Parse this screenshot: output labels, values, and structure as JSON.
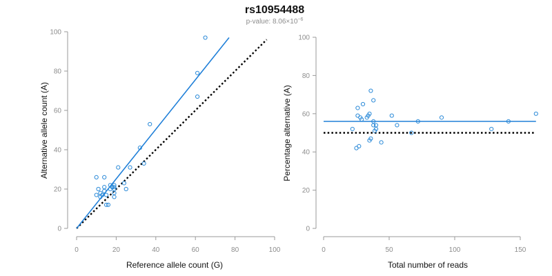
{
  "figure": {
    "title": "rs10954488",
    "subtitle_prefix": "p-value: 8.06×10",
    "subtitle_exponent": "−6",
    "colors": {
      "fit": "#1f7fd8",
      "points": "#2b8ad8",
      "reference": "#000000"
    }
  },
  "chart_data": [
    {
      "type": "scatter",
      "xlabel": "Reference allele count (G)",
      "ylabel": "Alternative allele count (A)",
      "xlim": [
        0,
        100
      ],
      "ylim": [
        0,
        100
      ],
      "xticks": [
        0,
        20,
        40,
        60,
        80,
        100
      ],
      "yticks": [
        0,
        20,
        40,
        60,
        80,
        100
      ],
      "points": [
        [
          10,
          26
        ],
        [
          14,
          26
        ],
        [
          21,
          31
        ],
        [
          25,
          20
        ],
        [
          24,
          23
        ],
        [
          27,
          31
        ],
        [
          10,
          17
        ],
        [
          11,
          20
        ],
        [
          12,
          16
        ],
        [
          12,
          18
        ],
        [
          13,
          17
        ],
        [
          14,
          19
        ],
        [
          14,
          21
        ],
        [
          15,
          17
        ],
        [
          15,
          12
        ],
        [
          16,
          12
        ],
        [
          17,
          20
        ],
        [
          17,
          22
        ],
        [
          18,
          21
        ],
        [
          19,
          22
        ],
        [
          19,
          21
        ],
        [
          19,
          20
        ],
        [
          19,
          18
        ],
        [
          19,
          16
        ],
        [
          32,
          41
        ],
        [
          34,
          33
        ],
        [
          37,
          53
        ],
        [
          61,
          79
        ],
        [
          61,
          67
        ],
        [
          65,
          97
        ]
      ],
      "fit_line": {
        "from": [
          0,
          0
        ],
        "to": [
          77,
          97
        ]
      },
      "reference_line": {
        "from": [
          0,
          0
        ],
        "to": [
          96,
          96
        ]
      }
    },
    {
      "type": "scatter",
      "xlabel": "Total number of reads",
      "ylabel": "Percentage alternative (A)",
      "xlim": [
        0,
        160
      ],
      "ylim": [
        0,
        100
      ],
      "xticks": [
        0,
        50,
        100,
        150
      ],
      "yticks": [
        0,
        20,
        40,
        60,
        80,
        100
      ],
      "points": [
        [
          22,
          52
        ],
        [
          25,
          42
        ],
        [
          26,
          59
        ],
        [
          26,
          63
        ],
        [
          27,
          43
        ],
        [
          28,
          58
        ],
        [
          29,
          57
        ],
        [
          30,
          65
        ],
        [
          33,
          58
        ],
        [
          34,
          59
        ],
        [
          35,
          46
        ],
        [
          35,
          60
        ],
        [
          36,
          47
        ],
        [
          36,
          72
        ],
        [
          38,
          54
        ],
        [
          38,
          56
        ],
        [
          38,
          67
        ],
        [
          39,
          51
        ],
        [
          40,
          52
        ],
        [
          40,
          54
        ],
        [
          44,
          45
        ],
        [
          52,
          59
        ],
        [
          56,
          54
        ],
        [
          67,
          50
        ],
        [
          72,
          56
        ],
        [
          90,
          58
        ],
        [
          128,
          52
        ],
        [
          141,
          56
        ],
        [
          162,
          60
        ]
      ],
      "fit_line": {
        "from": [
          0,
          56
        ],
        "to": [
          162,
          56
        ]
      },
      "reference_line": {
        "from": [
          0,
          50
        ],
        "to": [
          162,
          50
        ]
      }
    }
  ]
}
